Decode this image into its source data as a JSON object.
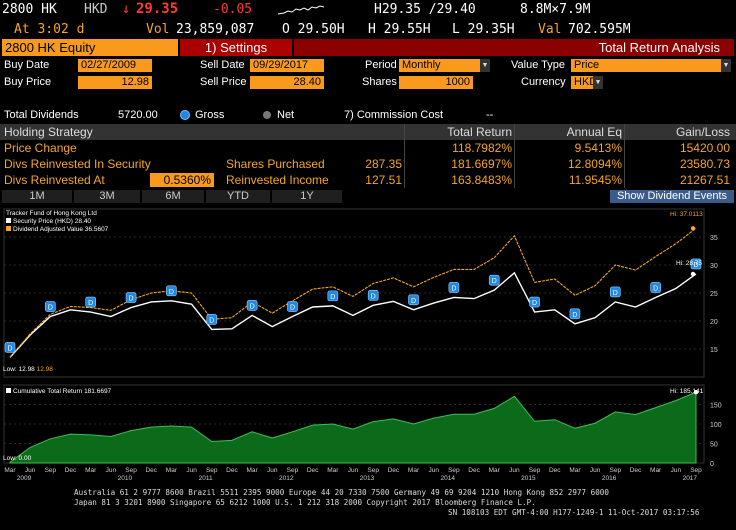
{
  "ticker_bar": {
    "ticker": "2800 HK",
    "currency": "HKD",
    "last_arrow": "↓",
    "last_price": "29.35",
    "change": "-0.05",
    "high_low": "H29.35 /29.40",
    "size": "8.8M×7.9M",
    "at_time": "At 3:02 d",
    "vol_label": "Vol",
    "volume": "23,859,087",
    "open": "O 29.50H",
    "high": "H 29.55H",
    "low": "L 29.35H",
    "val_label": "Val",
    "value": "702.595M"
  },
  "title_bar": {
    "security": "2800 HK Equity",
    "settings": "1) Settings",
    "analysis": "Total Return Analysis"
  },
  "settings": {
    "buy_date_label": "Buy Date",
    "buy_date": "02/27/2009",
    "sell_date_label": "Sell Date",
    "sell_date": "09/29/2017",
    "period_label": "Period",
    "period": "Monthly",
    "value_type_label": "Value Type",
    "value_type": "Price",
    "buy_price_label": "Buy Price",
    "buy_price": "12.98",
    "sell_price_label": "Sell Price",
    "sell_price": "28.40",
    "shares_label": "Shares",
    "shares": "1000",
    "currency_label": "Currency",
    "currency": "HKD"
  },
  "dividends": {
    "label": "Total Dividends",
    "value": "5720.00",
    "gross": "Gross",
    "net": "Net",
    "commission": "7) Commission Cost",
    "commission_value": "--"
  },
  "table": {
    "headers": [
      "Holding Strategy",
      "Total Return",
      "Annual Eq",
      "Gain/Loss"
    ],
    "rows": [
      {
        "label": "Price Change",
        "mid_label": "",
        "mid_value": "",
        "total": "118.7982%",
        "annual": "9.5413%",
        "gain": "15420.00"
      },
      {
        "label": "Divs Reinvested In Security",
        "mid_label": "Shares Purchased",
        "mid_value": "287.35",
        "total": "181.6697%",
        "annual": "12.8094%",
        "gain": "23580.73"
      },
      {
        "label": "Divs Reinvested At",
        "input": "0.5360%",
        "mid_label": "Reinvested Income",
        "mid_value": "127.51",
        "total": "163.8483%",
        "annual": "11.9545%",
        "gain": "21267.51"
      }
    ]
  },
  "periods": [
    "1M",
    "3M",
    "6M",
    "YTD",
    "1Y"
  ],
  "show_dividend_events": "Show Dividend Events",
  "legend_top": {
    "title": "Tracker Fund of Hong Kong Ltd",
    "series1": "Security Price (HKD)",
    "series1_value": "28.40",
    "series2": "Dividend Adjusted Value",
    "series2_value": "36.5607"
  },
  "legend_bottom": {
    "series": "Cumulative Total Return",
    "value": "181.6697"
  },
  "annotations": {
    "hi_orange": "Hi: 37.0113",
    "hi_white": "Hi: 28.75",
    "low_white": "Low: 12.98",
    "low_orange": "12.98",
    "hi_bottom": "Hi: 185.141",
    "low_bottom": "Low: 0.00"
  },
  "dividend_marker": "D",
  "colors": {
    "amber": "#f5a623",
    "orange_field": "#f99a1c",
    "title_red": "#8b0000",
    "area_green": "#0b6b1a",
    "dividend_blue": "#1e88e5"
  },
  "chart_data": [
    {
      "type": "line",
      "x": [
        "2009-03",
        "2009-06",
        "2009-09",
        "2009-12",
        "2010-03",
        "2010-06",
        "2010-09",
        "2010-12",
        "2011-03",
        "2011-06",
        "2011-09",
        "2011-12",
        "2012-03",
        "2012-06",
        "2012-09",
        "2012-12",
        "2013-03",
        "2013-06",
        "2013-09",
        "2013-12",
        "2014-03",
        "2014-06",
        "2014-09",
        "2014-12",
        "2015-03",
        "2015-05",
        "2015-09",
        "2015-12",
        "2016-02",
        "2016-06",
        "2016-09",
        "2016-12",
        "2017-03",
        "2017-06",
        "2017-09"
      ],
      "series": [
        {
          "name": "Security Price (HKD)",
          "color": "#ffffff",
          "values": [
            13.5,
            17.5,
            20.8,
            22.0,
            21.6,
            20.8,
            22.4,
            23.4,
            23.6,
            23.0,
            18.5,
            18.6,
            21.0,
            19.0,
            20.8,
            22.5,
            22.7,
            21.0,
            22.8,
            23.5,
            22.0,
            23.2,
            24.2,
            24.0,
            25.5,
            28.6,
            21.6,
            22.0,
            19.5,
            20.6,
            23.4,
            22.5,
            24.2,
            25.8,
            28.4
          ]
        },
        {
          "name": "Dividend Adjusted Value",
          "color": "#f5a623",
          "values": [
            13.5,
            17.7,
            21.2,
            22.6,
            22.4,
            21.9,
            23.8,
            25.0,
            25.4,
            25.0,
            20.3,
            20.6,
            23.4,
            21.4,
            23.6,
            25.7,
            26.1,
            24.4,
            26.7,
            27.7,
            26.1,
            27.8,
            29.2,
            29.2,
            31.3,
            35.2,
            26.9,
            27.5,
            24.6,
            26.3,
            30.0,
            29.1,
            31.5,
            33.8,
            36.56
          ]
        }
      ],
      "ylim": [
        10,
        40
      ],
      "y_ticks": [
        15,
        20,
        25,
        30,
        35
      ]
    },
    {
      "type": "area",
      "x": [
        "2009-03",
        "2009-06",
        "2009-09",
        "2009-12",
        "2010-03",
        "2010-06",
        "2010-09",
        "2010-12",
        "2011-03",
        "2011-06",
        "2011-09",
        "2011-12",
        "2012-03",
        "2012-06",
        "2012-09",
        "2012-12",
        "2013-03",
        "2013-06",
        "2013-09",
        "2013-12",
        "2014-03",
        "2014-06",
        "2014-09",
        "2014-12",
        "2015-03",
        "2015-05",
        "2015-09",
        "2015-12",
        "2016-02",
        "2016-06",
        "2016-09",
        "2016-12",
        "2017-03",
        "2017-06",
        "2017-09"
      ],
      "series": [
        {
          "name": "Cumulative Total Return",
          "color": "#0b6b1a",
          "values": [
            2,
            40,
            62,
            74,
            72,
            68,
            83,
            92,
            95,
            92,
            55,
            58,
            80,
            64,
            80,
            97,
            100,
            87,
            106,
            113,
            100,
            115,
            125,
            125,
            140,
            171,
            107,
            111,
            89,
            102,
            131,
            124,
            142,
            160,
            181.67
          ]
        }
      ],
      "ylim": [
        0,
        200
      ],
      "y_ticks": [
        0,
        50,
        100,
        150
      ]
    }
  ],
  "x_axis": {
    "months": [
      "Mar",
      "Jun",
      "Sep",
      "Dec",
      "Mar",
      "Jun",
      "Sep",
      "Dec",
      "Mar",
      "Jun",
      "Sep",
      "Dec",
      "Mar",
      "Jun",
      "Sep",
      "Dec",
      "Mar",
      "Jun",
      "Sep",
      "Dec",
      "Mar",
      "Jun",
      "Sep",
      "Dec",
      "Mar",
      "Jun",
      "Sep",
      "Dec",
      "Mar",
      "Jun",
      "Sep",
      "Dec",
      "Mar",
      "Jun",
      "Sep"
    ],
    "years": [
      "2009",
      "2010",
      "2011",
      "2012",
      "2013",
      "2014",
      "2015",
      "2016",
      "2017"
    ]
  },
  "footer": {
    "line1": "Australia 61 2 9777 8600 Brazil 5511 2395 9000 Europe 44 20 7330 7500 Germany 49 69 9204 1210 Hong Kong 852 2977 6000",
    "line2": "Japan 81 3 3201 8900     Singapore 65 6212 1000     U.S. 1 212 318 2000     Copyright 2017 Bloomberg Finance L.P.",
    "line3": "SN 108103 EDT  GMT-4:00 H177-1249-1 11-Oct-2017 03:17:56"
  }
}
